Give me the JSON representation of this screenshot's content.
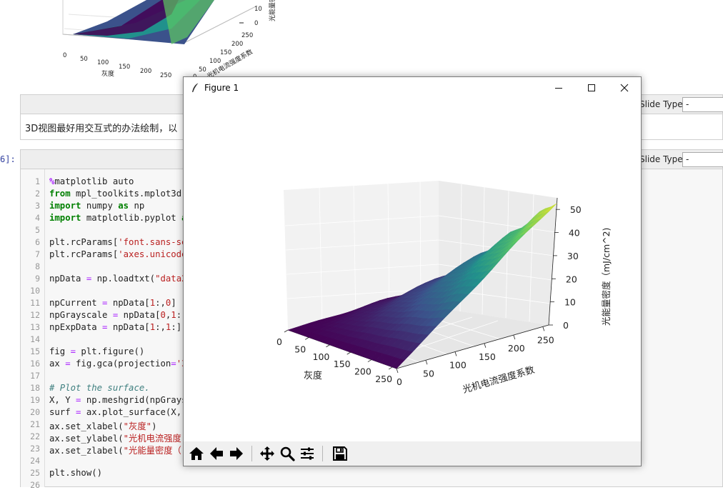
{
  "notebook": {
    "prev_plot": {
      "z_ticks": [
        "10",
        "0"
      ],
      "y_ticks": [
        "250",
        "200",
        "150",
        "100",
        "50",
        "0"
      ],
      "x_ticks": [
        "0",
        "50",
        "100",
        "150",
        "200",
        "250"
      ],
      "xlabel": "灰度",
      "ylabel": "光机电流强度系数",
      "zlabel": "光能量密度"
    },
    "md_toolbar": {
      "slide_type_label": "Slide Type",
      "slide_type_value": "-"
    },
    "md_cell_text": "3D视图最好用交互式的办法绘制，以",
    "code_toolbar": {
      "slide_type_label": "Slide Type",
      "slide_type_value": "-"
    },
    "code_prompt": "6]:",
    "line_numbers": [
      "1",
      "2",
      "3",
      "4",
      "5",
      "6",
      "7",
      "8",
      "9",
      "10",
      "11",
      "12",
      "13",
      "14",
      "15",
      "16",
      "17",
      "18",
      "19",
      "20",
      "21",
      "22",
      "23",
      "24",
      "25",
      "26"
    ]
  },
  "figure_window": {
    "title": "Figure 1",
    "buttons": [
      "minimize",
      "maximize",
      "close"
    ],
    "toolbar_icons": [
      "home-icon",
      "back-arrow-icon",
      "forward-arrow-icon",
      "pan-icon",
      "zoom-icon",
      "subplots-icon",
      "save-icon"
    ]
  },
  "chart_data": {
    "type": "surface3d",
    "title": "",
    "xlabel": "灰度",
    "ylabel": "光机电流强度系数",
    "zlabel": "光能量密度（mJ/cm^2)",
    "x_ticks": [
      "0",
      "50",
      "100",
      "150",
      "200",
      "250"
    ],
    "y_ticks": [
      "0",
      "50",
      "100",
      "150",
      "200",
      "250"
    ],
    "z_ticks": [
      "0",
      "10",
      "20",
      "30",
      "40",
      "50"
    ],
    "xlim": [
      0,
      260
    ],
    "ylim": [
      0,
      260
    ],
    "zlim": [
      0,
      55
    ],
    "colormap": "viridis",
    "colormap_colors": [
      "#440154",
      "#3b528b",
      "#21918c",
      "#5ec962",
      "#fde725"
    ],
    "grid": true
  }
}
